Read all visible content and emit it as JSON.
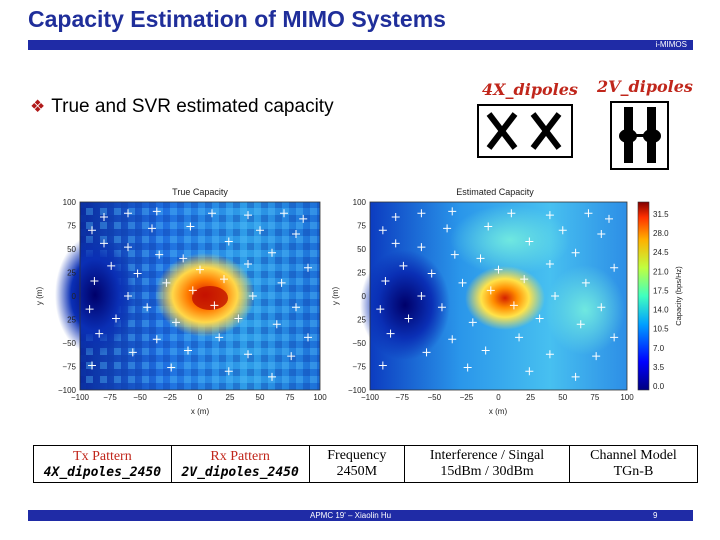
{
  "slide": {
    "title": "Capacity Estimation of MIMO Systems",
    "tag": "i-MIMOS",
    "bullet": "True and SVR estimated capacity",
    "bullet_icon": "diamond-bullet-icon",
    "accent": "#1f2ba6",
    "title_color": "#1f2e9a",
    "red": "#c0261b"
  },
  "antennas": [
    {
      "label": "4X_dipoles"
    },
    {
      "label": "2V_dipoles"
    }
  ],
  "plots": [
    {
      "title": "True Capacity",
      "xlabel": "x (m)",
      "ylabel": "y (m)",
      "xticks": [
        "−100",
        "−75",
        "−50",
        "−25",
        "0",
        "25",
        "50",
        "75",
        "100"
      ],
      "yticks": [
        "100",
        "75",
        "50",
        "25",
        "0",
        "25",
        "−50",
        "−75",
        "−100"
      ]
    },
    {
      "title": "Estimated Capacity",
      "xlabel": "x (m)",
      "ylabel": "y (m)",
      "xticks": [
        "−100",
        "−75",
        "−50",
        "−25",
        "0",
        "25",
        "50",
        "75",
        "100"
      ],
      "yticks": [
        "100",
        "75",
        "50",
        "25",
        "0",
        "25",
        "−50",
        "−75",
        "−100"
      ]
    }
  ],
  "colorbar": {
    "label": "Capacity (bps/Hz)",
    "ticks": [
      "31.5",
      "28.0",
      "24.5",
      "21.0",
      "17.5",
      "14.0",
      "10.5",
      "7.0",
      "3.5",
      "0.0"
    ]
  },
  "table": {
    "tx_head": "Tx Pattern",
    "tx_value": "4X_dipoles_2450",
    "rx_head": "Rx Pattern",
    "rx_value": "2V_dipoles_2450",
    "freq_head": "Frequency",
    "freq_value": "2450M",
    "interf_head": "Interference / Singal",
    "interf_value": "15dBm / 30dBm",
    "chan_head": "Channel Model",
    "chan_value": "TGn-B"
  },
  "footer": {
    "text": "APMC 19' – Xiaolin Hu",
    "page": "9"
  }
}
